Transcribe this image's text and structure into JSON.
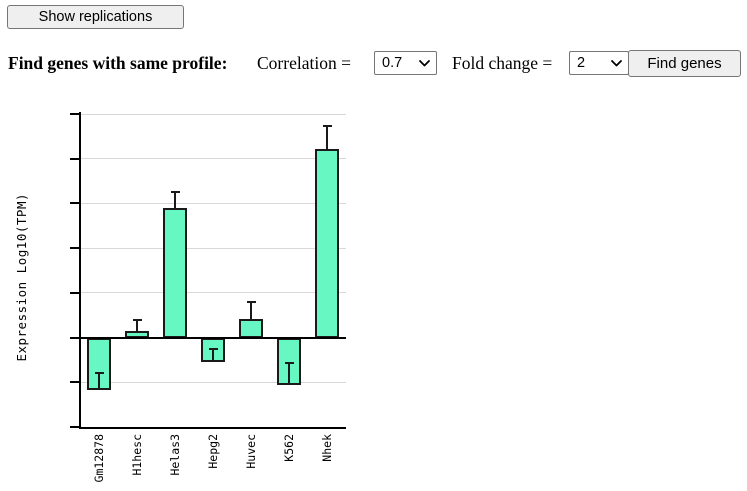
{
  "toolbar": {
    "show_replications_label": "Show replications"
  },
  "find_panel": {
    "title": "Find genes with same profile:",
    "correlation_label": "Correlation =",
    "correlation_value": "0.7",
    "fold_change_label": "Fold change =",
    "fold_change_value": "2",
    "find_genes_label": "Find genes"
  },
  "chart_data": {
    "type": "bar",
    "title": "",
    "xlabel": "",
    "ylabel": "Expression Log10(TPM)",
    "categories": [
      "Gm12878",
      "H1hesc",
      "Helas3",
      "Hepg2",
      "Huvec",
      "K562",
      "Nhek"
    ],
    "values": [
      -0.59,
      0.07,
      1.45,
      -0.27,
      0.21,
      -0.53,
      2.11
    ],
    "error_up": [
      0.19,
      0.13,
      0.18,
      0.14,
      0.19,
      0.25,
      0.26
    ],
    "ylim": [
      -1,
      2.5
    ],
    "yticks": [
      2.5,
      2,
      1.5,
      1,
      0.5,
      0,
      -0.5,
      -1
    ],
    "grid": true,
    "legend": false,
    "bar_color": "#66f7c2",
    "bar_border_color": "#1a1a1a",
    "grid_color": "#d8d8d8",
    "axis_color": "#000000"
  }
}
